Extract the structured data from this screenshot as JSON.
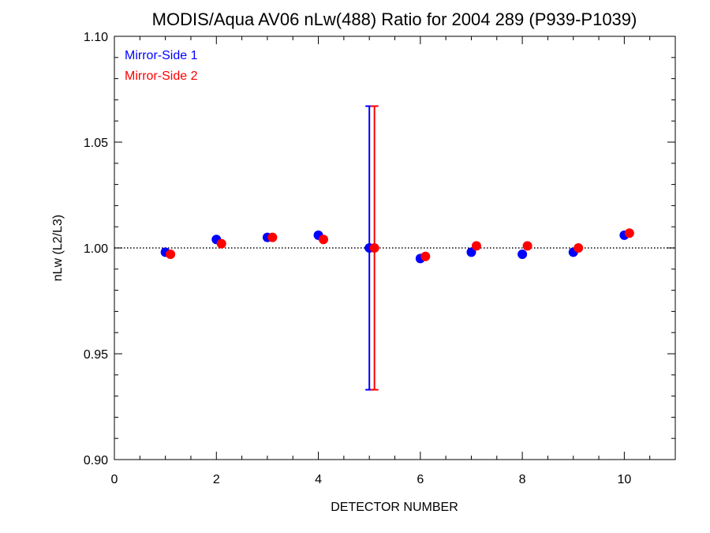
{
  "chart_data": {
    "type": "scatter",
    "title": "MODIS/Aqua AV06 nLw(488) Ratio for 2004 289 (P939-P1039)",
    "xlabel": "DETECTOR NUMBER",
    "ylabel": "nLw (L2/L3)",
    "xlim": [
      0,
      11
    ],
    "ylim": [
      0.9,
      1.1
    ],
    "x_ticks": [
      0,
      2,
      4,
      6,
      8,
      10
    ],
    "x_tick_labels": [
      "0",
      "2",
      "4",
      "6",
      "8",
      "10"
    ],
    "y_ticks": [
      0.9,
      0.95,
      1.0,
      1.05,
      1.1
    ],
    "y_tick_labels": [
      "0.90",
      "0.95",
      "1.00",
      "1.05",
      "1.10"
    ],
    "reference_line": 1.0,
    "legend_position": "top-left",
    "series": [
      {
        "name": "Mirror-Side 1",
        "color": "#0000ff",
        "x": [
          1,
          2,
          3,
          4,
          5,
          6,
          7,
          8,
          9,
          10
        ],
        "y": [
          0.998,
          1.004,
          1.005,
          1.006,
          1.0,
          0.995,
          0.998,
          0.997,
          0.998,
          1.006
        ],
        "error_bars": [
          {
            "x": 5,
            "low": 0.933,
            "high": 1.067
          }
        ]
      },
      {
        "name": "Mirror-Side 2",
        "color": "#ff0000",
        "x": [
          1.1,
          2.1,
          3.1,
          4.1,
          5.1,
          6.1,
          7.1,
          8.1,
          9.1,
          10.1
        ],
        "y": [
          0.997,
          1.002,
          1.005,
          1.004,
          1.0,
          0.996,
          1.001,
          1.001,
          1.0,
          1.007
        ],
        "error_bars": [
          {
            "x": 5.1,
            "low": 0.933,
            "high": 1.067
          }
        ]
      }
    ]
  }
}
